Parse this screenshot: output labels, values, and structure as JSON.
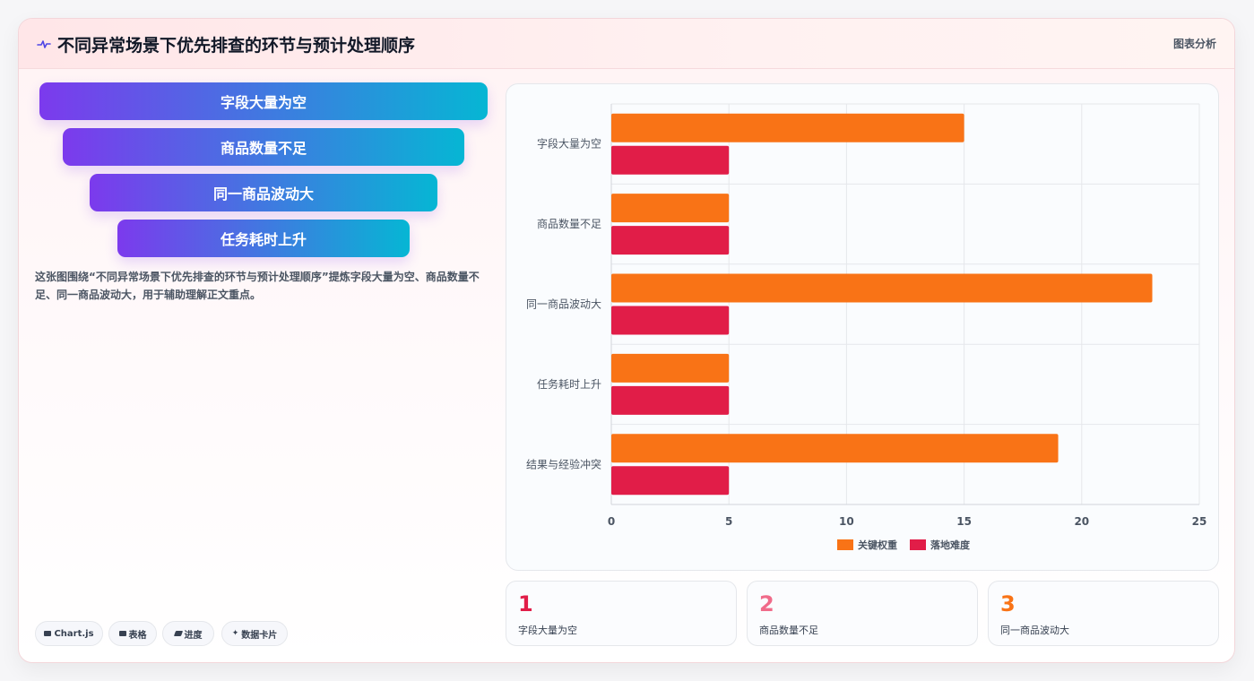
{
  "header": {
    "title": "不同异常场景下优先排查的环节与预计处理顺序",
    "tag": "图表分析",
    "logo_icon": "pulse-icon"
  },
  "funnel": {
    "items": [
      "字段大量为空",
      "商品数量不足",
      "同一商品波动大",
      "任务耗时上升"
    ]
  },
  "description": "这张图围绕“不同异常场景下优先排查的环节与预计处理顺序”提炼字段大量为空、商品数量不足、同一商品波动大，用于辅助理解正文重点。",
  "chips": [
    {
      "icon": "chart-icon",
      "label": "Chart.js"
    },
    {
      "icon": "table-icon",
      "label": "表格"
    },
    {
      "icon": "progress-icon",
      "label": "进度"
    },
    {
      "icon": "sparkle-icon",
      "label": "数据卡片"
    }
  ],
  "stats": [
    {
      "number": "1",
      "label": "字段大量为空",
      "color": "#e11d48"
    },
    {
      "number": "2",
      "label": "商品数量不足",
      "color": "#f06b8a"
    },
    {
      "number": "3",
      "label": "同一商品波动大",
      "color": "#f97316"
    }
  ],
  "chart_data": {
    "type": "bar",
    "orientation": "horizontal",
    "categories": [
      "字段大量为空",
      "商品数量不足",
      "同一商品波动大",
      "任务耗时上升",
      "结果与经验冲突"
    ],
    "series": [
      {
        "name": "关键权重",
        "color": "#f97316",
        "values": [
          15,
          5,
          23,
          5,
          19
        ]
      },
      {
        "name": "落地难度",
        "color": "#e11d48",
        "values": [
          5,
          5,
          5,
          5,
          5
        ]
      }
    ],
    "x_ticks": [
      0,
      5,
      10,
      15,
      20,
      25
    ],
    "xlim": [
      0,
      25
    ],
    "grid": true,
    "legend_position": "bottom"
  }
}
